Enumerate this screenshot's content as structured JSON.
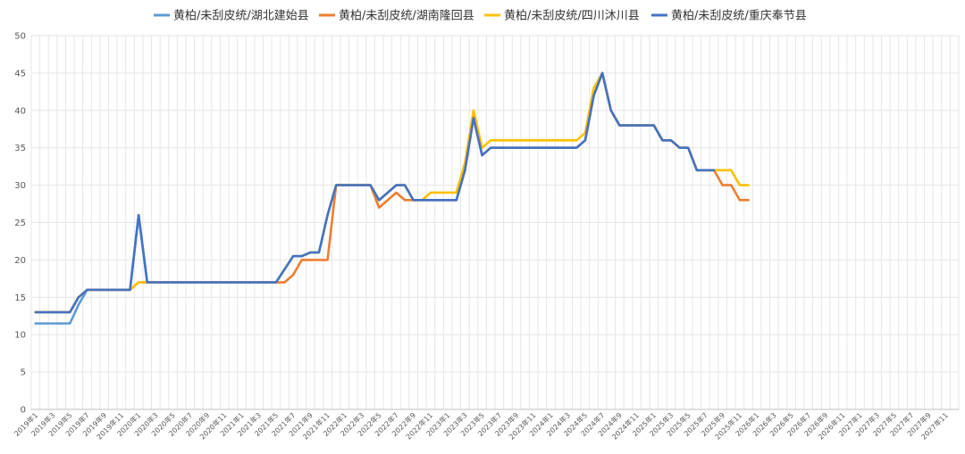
{
  "chart_data": {
    "type": "line",
    "title": "",
    "xlabel": "",
    "ylabel": "",
    "ylim": [
      0,
      50
    ],
    "y_ticks": [
      0,
      5,
      10,
      15,
      20,
      25,
      30,
      35,
      40,
      45,
      50
    ],
    "grid": true,
    "legend_position": "top",
    "x_tick_labels": [
      "2019年1",
      "2019年3",
      "2019年5",
      "2019年7",
      "2019年9",
      "2019年11",
      "2020年1",
      "2020年3",
      "2020年5",
      "2020年7",
      "2020年9",
      "2020年11",
      "2021年1",
      "2021年3",
      "2021年5",
      "2021年7",
      "2021年9",
      "2021年11",
      "2022年1",
      "2022年3",
      "2022年5",
      "2022年7",
      "2022年9",
      "2022年11",
      "2023年1",
      "2023年3",
      "2023年5",
      "2023年7",
      "2023年9",
      "2023年11",
      "2024年1",
      "2024年3",
      "2024年5",
      "2024年7",
      "2024年9",
      "2024年11",
      "2025年1",
      "2025年3",
      "2025年5",
      "2025年7",
      "2025年9",
      "2025年11",
      "2026年1",
      "2026年3",
      "2026年5",
      "2026年7",
      "2026年9",
      "2026年11",
      "2027年1",
      "2027年3",
      "2027年5",
      "2027年7",
      "2027年9",
      "2027年11"
    ],
    "series": [
      {
        "name": "黄柏/未刮皮统/湖北建始县",
        "color": "#5b9bd5",
        "points": [
          [
            "2019-01",
            11.5
          ],
          [
            "2019-05",
            11.5
          ],
          [
            "2019-06",
            14
          ],
          [
            "2019-07",
            16
          ],
          [
            "2019-12",
            16
          ],
          [
            "2020-01",
            26
          ],
          [
            "2020-02",
            17
          ],
          [
            "2021-05",
            17
          ],
          [
            "2021-07",
            20.5
          ],
          [
            "2021-08",
            20.5
          ],
          [
            "2021-09",
            21
          ],
          [
            "2021-10",
            21
          ],
          [
            "2021-11",
            26
          ],
          [
            "2021-12",
            30
          ],
          [
            "2022-04",
            30
          ],
          [
            "2022-05",
            28
          ],
          [
            "2022-07",
            30
          ],
          [
            "2022-08",
            30
          ],
          [
            "2022-09",
            28
          ],
          [
            "2023-02",
            28
          ],
          [
            "2023-03",
            32
          ],
          [
            "2023-04",
            39
          ],
          [
            "2023-05",
            34
          ],
          [
            "2023-06",
            35
          ],
          [
            "2024-04",
            35
          ],
          [
            "2024-05",
            36
          ],
          [
            "2024-06",
            42
          ],
          [
            "2024-07",
            45
          ],
          [
            "2024-08",
            40
          ],
          [
            "2024-09",
            38
          ],
          [
            "2025-01",
            38
          ],
          [
            "2025-02",
            36
          ],
          [
            "2025-03",
            36
          ],
          [
            "2025-04",
            35
          ],
          [
            "2025-05",
            35
          ],
          [
            "2025-06",
            32
          ],
          [
            "2025-08",
            32
          ]
        ]
      },
      {
        "name": "黄柏/未刮皮统/湖南隆回县",
        "color": "#ed7d31",
        "points": [
          [
            "2019-01",
            13
          ],
          [
            "2019-05",
            13
          ],
          [
            "2019-06",
            15
          ],
          [
            "2019-07",
            16
          ],
          [
            "2019-12",
            16
          ],
          [
            "2020-01",
            17
          ],
          [
            "2020-02",
            17
          ],
          [
            "2021-06",
            17
          ],
          [
            "2021-07",
            18
          ],
          [
            "2021-08",
            20
          ],
          [
            "2021-11",
            20
          ],
          [
            "2021-12",
            30
          ],
          [
            "2022-04",
            30
          ],
          [
            "2022-05",
            27
          ],
          [
            "2022-07",
            29
          ],
          [
            "2022-08",
            28
          ],
          [
            "2022-09",
            28
          ],
          [
            "2023-02",
            28
          ],
          [
            "2023-03",
            32
          ],
          [
            "2023-04",
            39
          ],
          [
            "2023-05",
            34
          ],
          [
            "2023-06",
            35
          ],
          [
            "2024-04",
            35
          ],
          [
            "2024-05",
            36
          ],
          [
            "2024-06",
            42
          ],
          [
            "2024-07",
            45
          ],
          [
            "2024-08",
            40
          ],
          [
            "2024-09",
            38
          ],
          [
            "2025-01",
            38
          ],
          [
            "2025-02",
            36
          ],
          [
            "2025-03",
            36
          ],
          [
            "2025-04",
            35
          ],
          [
            "2025-05",
            35
          ],
          [
            "2025-06",
            32
          ],
          [
            "2025-08",
            32
          ],
          [
            "2025-09",
            30
          ],
          [
            "2025-10",
            30
          ],
          [
            "2025-11",
            28
          ],
          [
            "2025-12",
            28
          ]
        ]
      },
      {
        "name": "黄柏/未刮皮统/四川沐川县",
        "color": "#ffc000",
        "points": [
          [
            "2019-01",
            13
          ],
          [
            "2019-05",
            13
          ],
          [
            "2019-06",
            15
          ],
          [
            "2019-07",
            16
          ],
          [
            "2019-12",
            16
          ],
          [
            "2020-01",
            17
          ],
          [
            "2021-05",
            17
          ],
          [
            "2021-07",
            20.5
          ],
          [
            "2021-08",
            20.5
          ],
          [
            "2021-09",
            21
          ],
          [
            "2021-10",
            21
          ],
          [
            "2021-11",
            26
          ],
          [
            "2021-12",
            30
          ],
          [
            "2022-04",
            30
          ],
          [
            "2022-05",
            28
          ],
          [
            "2022-07",
            30
          ],
          [
            "2022-08",
            30
          ],
          [
            "2022-09",
            28
          ],
          [
            "2022-10",
            28
          ],
          [
            "2022-11",
            29
          ],
          [
            "2023-02",
            29
          ],
          [
            "2023-03",
            33
          ],
          [
            "2023-04",
            40
          ],
          [
            "2023-05",
            35
          ],
          [
            "2023-06",
            36
          ],
          [
            "2024-04",
            36
          ],
          [
            "2024-05",
            37
          ],
          [
            "2024-06",
            43
          ],
          [
            "2024-07",
            45
          ],
          [
            "2024-08",
            40
          ],
          [
            "2024-09",
            38
          ],
          [
            "2025-01",
            38
          ],
          [
            "2025-02",
            36
          ],
          [
            "2025-03",
            36
          ],
          [
            "2025-04",
            35
          ],
          [
            "2025-05",
            35
          ],
          [
            "2025-06",
            32
          ],
          [
            "2025-08",
            32
          ],
          [
            "2025-10",
            32
          ],
          [
            "2025-11",
            30
          ],
          [
            "2025-12",
            30
          ]
        ]
      },
      {
        "name": "黄柏/未刮皮统/重庆奉节县",
        "color": "#4472c4",
        "points": [
          [
            "2019-01",
            13
          ],
          [
            "2019-05",
            13
          ],
          [
            "2019-06",
            15
          ],
          [
            "2019-07",
            16
          ],
          [
            "2019-12",
            16
          ],
          [
            "2020-01",
            26
          ],
          [
            "2020-02",
            17
          ],
          [
            "2021-05",
            17
          ],
          [
            "2021-07",
            20.5
          ],
          [
            "2021-08",
            20.5
          ],
          [
            "2021-09",
            21
          ],
          [
            "2021-10",
            21
          ],
          [
            "2021-11",
            26
          ],
          [
            "2021-12",
            30
          ],
          [
            "2022-04",
            30
          ],
          [
            "2022-05",
            28
          ],
          [
            "2022-07",
            30
          ],
          [
            "2022-08",
            30
          ],
          [
            "2022-09",
            28
          ],
          [
            "2023-02",
            28
          ],
          [
            "2023-03",
            32
          ],
          [
            "2023-04",
            39
          ],
          [
            "2023-05",
            34
          ],
          [
            "2023-06",
            35
          ],
          [
            "2024-04",
            35
          ],
          [
            "2024-05",
            36
          ],
          [
            "2024-06",
            42
          ],
          [
            "2024-07",
            45
          ],
          [
            "2024-08",
            40
          ],
          [
            "2024-09",
            38
          ],
          [
            "2025-01",
            38
          ],
          [
            "2025-02",
            36
          ],
          [
            "2025-03",
            36
          ],
          [
            "2025-04",
            35
          ],
          [
            "2025-05",
            35
          ],
          [
            "2025-06",
            32
          ],
          [
            "2025-08",
            32
          ]
        ]
      }
    ]
  }
}
